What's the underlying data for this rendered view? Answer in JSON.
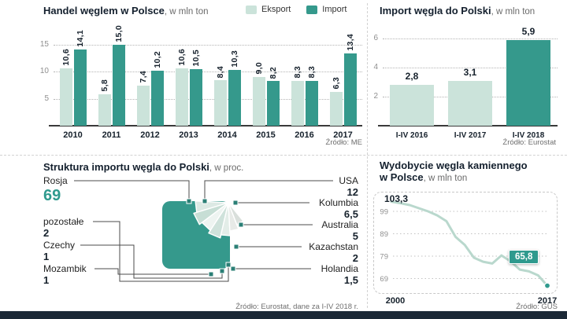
{
  "colors": {
    "export_light": "#cbe3da",
    "import_teal": "#35998c",
    "accent_teal": "#2f9a8e",
    "navy_text": "#16212c",
    "footer_navy": "#1c2937"
  },
  "chart_data": [
    {
      "id": "trade",
      "type": "bar",
      "title": "Handel węglem w Polsce",
      "title_suffix": ", w mln ton",
      "legend_position": "top-right",
      "categories": [
        "2010",
        "2011",
        "2012",
        "2013",
        "2014",
        "2015",
        "2016",
        "2017"
      ],
      "series": [
        {
          "name": "Eksport",
          "values": [
            10.6,
            5.8,
            7.4,
            10.6,
            8.4,
            9.0,
            8.3,
            6.3
          ],
          "labels": [
            "10,6",
            "5,8",
            "7,4",
            "10,6",
            "8,4",
            "9,0",
            "8,3",
            "6,3"
          ]
        },
        {
          "name": "Import",
          "values": [
            14.1,
            15.0,
            10.2,
            10.5,
            10.3,
            8.2,
            8.3,
            13.4
          ],
          "labels": [
            "14,1",
            "15,0",
            "10,2",
            "10,5",
            "10,3",
            "8,2",
            "8,3",
            "13,4"
          ]
        }
      ],
      "yticks": [
        5,
        10,
        15
      ],
      "ylim": [
        0,
        18
      ],
      "grid": "dotted",
      "source": "Źródło: ME"
    },
    {
      "id": "import",
      "type": "bar",
      "title": "Import węgla do Polski",
      "title_suffix": ", w mln ton",
      "categories": [
        "I-IV 2016",
        "I-IV 2017",
        "I-IV 2018"
      ],
      "values": [
        2.8,
        3.1,
        5.9
      ],
      "labels": [
        "2,8",
        "3,1",
        "5,9"
      ],
      "highlight_index": 2,
      "yticks": [
        2,
        4,
        6
      ],
      "ylim": [
        0,
        6.7
      ],
      "grid": "dotted",
      "source": "Źródło: Eurostat"
    },
    {
      "id": "structure",
      "type": "pie",
      "title": "Struktura importu węgla do Polski",
      "title_suffix": ", w proc.",
      "items": [
        {
          "name": "Rosja",
          "value": "69",
          "numeric": 69,
          "side": "left",
          "emphasis": true
        },
        {
          "name": "pozostałe",
          "value": "2",
          "numeric": 2,
          "side": "left"
        },
        {
          "name": "Czechy",
          "value": "1",
          "numeric": 1,
          "side": "left"
        },
        {
          "name": "Mozambik",
          "value": "1",
          "numeric": 1,
          "side": "left"
        },
        {
          "name": "USA",
          "value": "12",
          "numeric": 12,
          "side": "right"
        },
        {
          "name": "Kolumbia",
          "value": "6,5",
          "numeric": 6.5,
          "side": "right"
        },
        {
          "name": "Australia",
          "value": "5",
          "numeric": 5,
          "side": "right"
        },
        {
          "name": "Kazachstan",
          "value": "2",
          "numeric": 2,
          "side": "right"
        },
        {
          "name": "Holandia",
          "value": "1,5",
          "numeric": 1.5,
          "side": "right"
        }
      ],
      "source": "Źródło: Eurostat, dane za I-IV 2018 r."
    },
    {
      "id": "mining",
      "type": "line",
      "title": "Wydobycie węgla kamiennego",
      "title_line2": "w Polsce",
      "title_suffix": ", w mln ton",
      "years": [
        2000,
        2001,
        2002,
        2003,
        2004,
        2005,
        2006,
        2007,
        2008,
        2009,
        2010,
        2011,
        2012,
        2013,
        2014,
        2015,
        2016,
        2017
      ],
      "values": [
        103.3,
        102.6,
        101.8,
        100.4,
        99.0,
        97.2,
        94.6,
        87.6,
        84.0,
        78.3,
        76.5,
        75.7,
        79.3,
        76.7,
        73.0,
        72.2,
        70.4,
        65.8
      ],
      "start_label": "103,3",
      "end_label": "65,8",
      "yticks": [
        99,
        89,
        79,
        69
      ],
      "x_labels": [
        "2000",
        "2017"
      ],
      "grid": "dotted",
      "source": "Źródło: GUS"
    }
  ]
}
